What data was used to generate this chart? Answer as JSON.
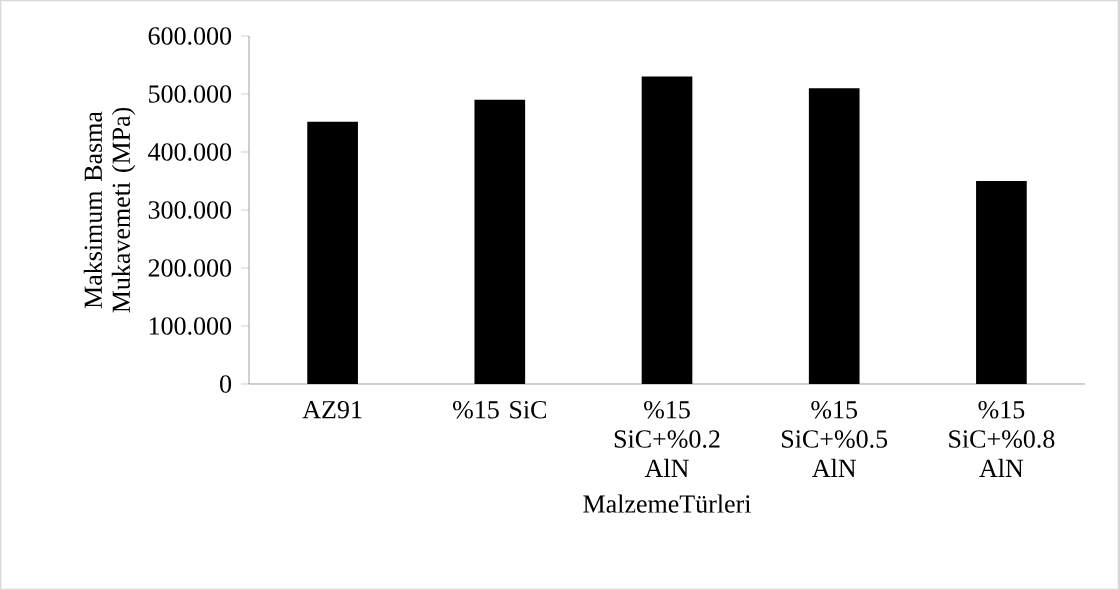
{
  "chart_data": {
    "type": "bar",
    "xlabel": "MalzemeTürleri",
    "ylabel": "Maksimum Basma Mukavemeti (MPa)",
    "categories": [
      "AZ91",
      "%15 SiC",
      "%15 SiC+%0.2 AlN",
      "%15 SiC+%0.5 AlN",
      "%15 SiC+%0.8 AlN"
    ],
    "values": [
      452,
      490,
      530,
      510,
      350
    ],
    "color": "#000000",
    "ylim": [
      0,
      600
    ],
    "yticks": [
      {
        "value": 0,
        "label": "0"
      },
      {
        "value": 100,
        "label": "100.000"
      },
      {
        "value": 200,
        "label": "200.000"
      },
      {
        "value": 300,
        "label": "300.000"
      },
      {
        "value": 400,
        "label": "400.000"
      },
      {
        "value": 500,
        "label": "500.000"
      },
      {
        "value": 600,
        "label": "600.000"
      }
    ],
    "grid": false
  }
}
